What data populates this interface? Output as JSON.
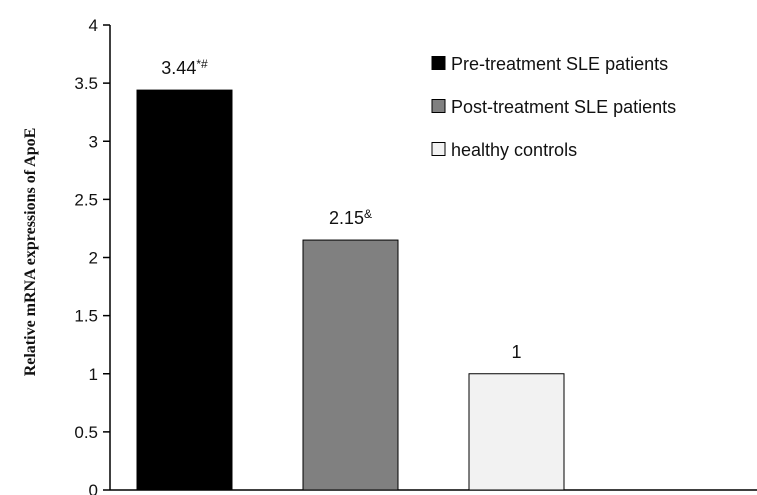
{
  "chart_data": {
    "type": "bar",
    "ylabel": "Relative mRNA  expressions of ApoE",
    "ylim": [
      0,
      4
    ],
    "yticks": [
      0,
      0.5,
      1,
      1.5,
      2,
      2.5,
      3,
      3.5,
      4
    ],
    "ytick_labels": [
      "0",
      "0.5",
      "1",
      "1.5",
      "2",
      "2.5",
      "3",
      "3.5",
      "4"
    ],
    "legend_position": "top-right",
    "series": [
      {
        "name": "Pre-treatment SLE patients",
        "value": 3.44,
        "label": "3.44",
        "label_sup": "*#",
        "color": "#000000"
      },
      {
        "name": "Post-treatment SLE patients",
        "value": 2.15,
        "label": "2.15",
        "label_sup": "&",
        "color": "#808080"
      },
      {
        "name": "healthy controls",
        "value": 1,
        "label": "1",
        "label_sup": "",
        "color": "#f2f2f2"
      }
    ]
  }
}
